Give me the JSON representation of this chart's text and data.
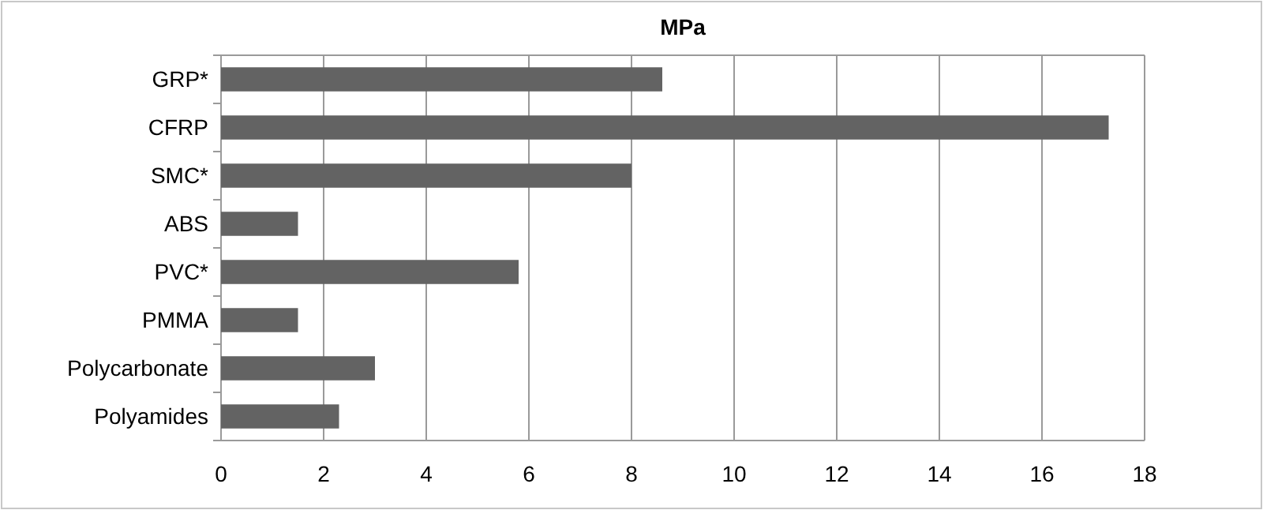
{
  "chart_data": {
    "type": "bar",
    "orientation": "horizontal",
    "title": "MPa",
    "categories": [
      "GRP*",
      "CFRP",
      "SMC*",
      "ABS",
      "PVC*",
      "PMMA",
      "Polycarbonate",
      "Polyamides"
    ],
    "values": [
      8.6,
      17.3,
      8.0,
      1.5,
      5.8,
      1.5,
      3.0,
      2.3
    ],
    "color": "#636363",
    "xlim": [
      0,
      18
    ],
    "xticks": [
      0,
      2,
      4,
      6,
      8,
      10,
      12,
      14,
      16,
      18
    ],
    "grid": "x"
  }
}
